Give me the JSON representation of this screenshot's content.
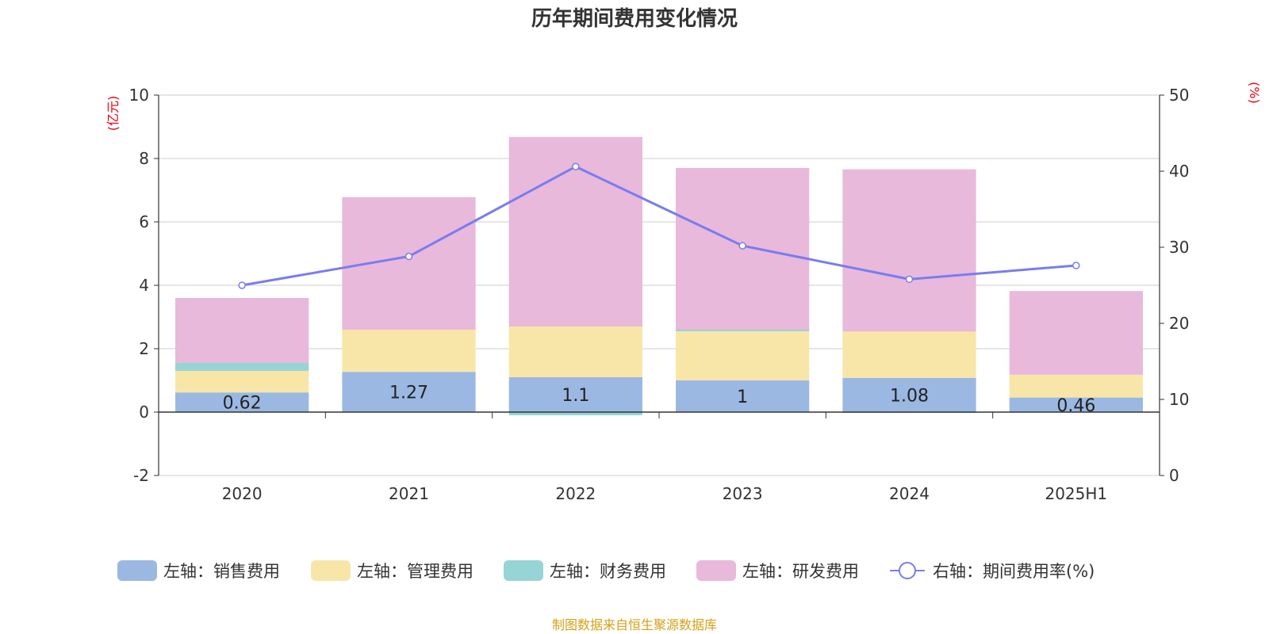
{
  "title": "历年期间费用变化情况",
  "source": "制图数据来自恒生聚源数据库",
  "colors": {
    "sales": "#9bb8e3",
    "admin": "#f8e6a8",
    "finance": "#97d4d6",
    "rnd": "#e8b9da",
    "rate": "#7a7cf0",
    "unit_text": "#e8000b",
    "source_text": "#d4a017",
    "grid": "#cccccc",
    "axis": "#333333"
  },
  "chart_data": {
    "type": "bar",
    "stacked": true,
    "categories": [
      "2020",
      "2021",
      "2022",
      "2023",
      "2024",
      "2025H1"
    ],
    "left_axis": {
      "unit": "(亿元)",
      "min": -2,
      "max": 10,
      "ticks": [
        "-2",
        "0",
        "2",
        "4",
        "6",
        "8",
        "10"
      ]
    },
    "right_axis": {
      "unit": "(%)",
      "min": 0,
      "max": 50,
      "ticks": [
        "0",
        "10",
        "20",
        "30",
        "40",
        "50"
      ]
    },
    "series": [
      {
        "key": "sales",
        "name": "左轴：销售费用",
        "axis": "left",
        "kind": "bar",
        "values": [
          0.62,
          1.27,
          1.1,
          1.0,
          1.08,
          0.46
        ],
        "labels": [
          "0.62",
          "1.27",
          "1.1",
          "1",
          "1.08",
          "0.46"
        ]
      },
      {
        "key": "admin",
        "name": "左轴：管理费用",
        "axis": "left",
        "kind": "bar",
        "values": [
          0.68,
          1.33,
          1.6,
          1.55,
          1.46,
          0.72
        ]
      },
      {
        "key": "finance",
        "name": "左轴：财务费用",
        "axis": "left",
        "kind": "bar",
        "values": [
          0.25,
          0.0,
          -0.1,
          0.05,
          -0.02,
          0.0
        ]
      },
      {
        "key": "rnd",
        "name": "左轴：研发费用",
        "axis": "left",
        "kind": "bar",
        "values": [
          2.05,
          4.18,
          5.98,
          5.1,
          5.12,
          2.64
        ]
      },
      {
        "key": "rate",
        "name": "右轴：期间费用率(%)",
        "axis": "right",
        "kind": "line",
        "values": [
          25.0,
          28.8,
          40.6,
          30.2,
          25.8,
          27.6
        ]
      }
    ],
    "legend_position": "bottom",
    "grid": true
  }
}
